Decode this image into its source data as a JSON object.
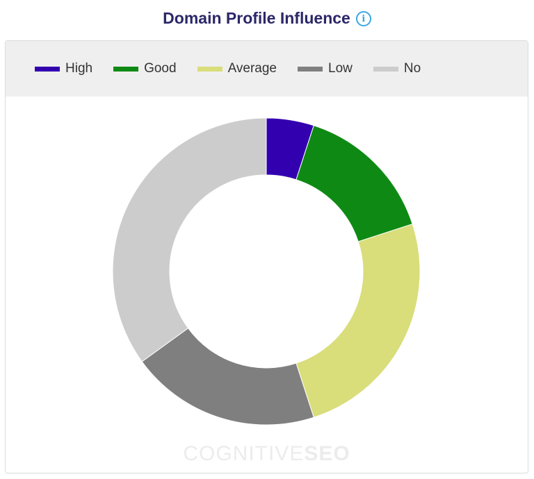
{
  "header": {
    "title": "Domain Profile Influence",
    "info_glyph": "i",
    "info_icon": "info-icon"
  },
  "watermark": {
    "part1": "COGNITIVE",
    "part2": "SEO"
  },
  "colors": {
    "High": "#3300b0",
    "Good": "#0e8a14",
    "Average": "#d9dd7a",
    "Low": "#7f7f7f",
    "No": "#cccccc"
  },
  "chart_data": {
    "type": "pie",
    "donut": true,
    "legend_position": "top",
    "categories": [
      "High",
      "Good",
      "Average",
      "Low",
      "No"
    ],
    "values": [
      5,
      15,
      25,
      20,
      35
    ],
    "colors": [
      "#3300b0",
      "#0e8a14",
      "#d9dd7a",
      "#7f7f7f",
      "#cccccc"
    ],
    "title": "Domain Profile Influence"
  }
}
